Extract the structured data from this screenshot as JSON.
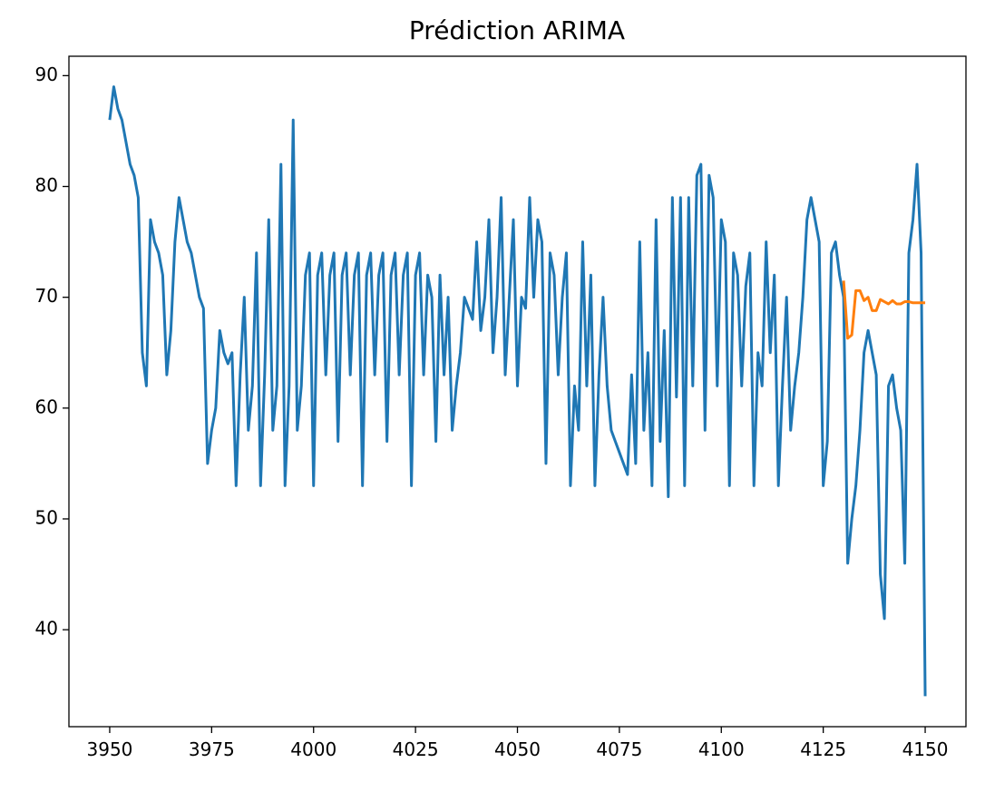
{
  "chart_data": {
    "type": "line",
    "title": "Prédiction ARIMA",
    "xlim": [
      3940,
      4160
    ],
    "xticks": [
      3950,
      3975,
      4000,
      4025,
      4050,
      4075,
      4100,
      4125,
      4150
    ],
    "ylim": [
      31.25,
      91.75
    ],
    "yticks": [
      40,
      50,
      60,
      70,
      80,
      90
    ],
    "series": [
      {
        "color": "#1f77b4",
        "x": [
          3950,
          3951,
          3952,
          3953,
          3954,
          3955,
          3956,
          3957,
          3958,
          3959,
          3960,
          3961,
          3962,
          3963,
          3964,
          3965,
          3966,
          3967,
          3968,
          3969,
          3970,
          3971,
          3972,
          3973,
          3974,
          3975,
          3976,
          3977,
          3978,
          3979,
          3980,
          3981,
          3982,
          3983,
          3984,
          3985,
          3986,
          3987,
          3988,
          3989,
          3990,
          3991,
          3992,
          3993,
          3994,
          3995,
          3996,
          3997,
          3998,
          3999,
          4000,
          4001,
          4002,
          4003,
          4004,
          4005,
          4006,
          4007,
          4008,
          4009,
          4010,
          4011,
          4012,
          4013,
          4014,
          4015,
          4016,
          4017,
          4018,
          4019,
          4020,
          4021,
          4022,
          4023,
          4024,
          4025,
          4026,
          4027,
          4028,
          4029,
          4030,
          4031,
          4032,
          4033,
          4034,
          4035,
          4036,
          4037,
          4038,
          4039,
          4040,
          4041,
          4042,
          4043,
          4044,
          4045,
          4046,
          4047,
          4048,
          4049,
          4050,
          4051,
          4052,
          4053,
          4054,
          4055,
          4056,
          4057,
          4058,
          4059,
          4060,
          4061,
          4062,
          4063,
          4064,
          4065,
          4066,
          4067,
          4068,
          4069,
          4070,
          4071,
          4072,
          4073,
          4074,
          4075,
          4076,
          4077,
          4078,
          4079,
          4080,
          4081,
          4082,
          4083,
          4084,
          4085,
          4086,
          4087,
          4088,
          4089,
          4090,
          4091,
          4092,
          4093,
          4094,
          4095,
          4096,
          4097,
          4098,
          4099,
          4100,
          4101,
          4102,
          4103,
          4104,
          4105,
          4106,
          4107,
          4108,
          4109,
          4110,
          4111,
          4112,
          4113,
          4114,
          4115,
          4116,
          4117,
          4118,
          4119,
          4120,
          4121,
          4122,
          4123,
          4124,
          4125,
          4126,
          4127,
          4128,
          4129,
          4130,
          4131,
          4132,
          4133,
          4134,
          4135,
          4136,
          4137,
          4138,
          4139,
          4140,
          4141,
          4142,
          4143,
          4144,
          4145,
          4146,
          4147,
          4148,
          4149,
          4150
        ],
        "values": [
          86,
          89,
          87,
          86,
          84,
          82,
          81,
          79,
          65,
          62,
          77,
          75,
          74,
          72,
          63,
          67,
          75,
          79,
          77,
          75,
          74,
          72,
          70,
          69,
          55,
          58,
          60,
          67,
          65,
          64,
          65,
          53,
          63,
          70,
          58,
          62,
          74,
          53,
          63,
          77,
          58,
          62,
          82,
          53,
          62,
          86,
          58,
          62,
          72,
          74,
          53,
          72,
          74,
          63,
          72,
          74,
          57,
          72,
          74,
          63,
          72,
          74,
          53,
          72,
          74,
          63,
          72,
          74,
          57,
          72,
          74,
          63,
          72,
          74,
          53,
          72,
          74,
          63,
          72,
          70,
          57,
          72,
          63,
          70,
          58,
          62,
          65,
          70,
          69,
          68,
          75,
          67,
          70,
          77,
          65,
          70,
          79,
          63,
          70,
          77,
          62,
          70,
          69,
          79,
          70,
          77,
          75,
          55,
          74,
          72,
          63,
          70,
          74,
          53,
          62,
          58,
          75,
          62,
          72,
          53,
          63,
          70,
          62,
          58,
          57,
          56,
          55,
          54,
          63,
          55,
          75,
          58,
          65,
          53,
          77,
          57,
          67,
          52,
          79,
          61,
          79,
          53,
          79,
          62,
          81,
          82,
          58,
          81,
          79,
          62,
          77,
          75,
          53,
          74,
          72,
          62,
          71,
          74,
          53,
          65,
          62,
          75,
          65,
          72,
          53,
          62,
          70,
          58,
          62,
          65,
          70,
          77,
          79,
          77,
          75,
          53,
          57,
          74,
          75,
          72,
          70,
          46,
          50,
          53,
          58,
          65,
          67,
          65,
          63,
          45,
          41,
          62,
          63,
          60,
          58,
          46,
          74,
          77,
          82,
          74,
          34
        ]
      },
      {
        "color": "#ff7f0e",
        "x": [
          4130,
          4131,
          4132,
          4133,
          4134,
          4135,
          4136,
          4137,
          4138,
          4139,
          4140,
          4141,
          4142,
          4143,
          4144,
          4145,
          4146,
          4147,
          4148,
          4149,
          4150
        ],
        "values": [
          71.5,
          66.3,
          66.6,
          70.6,
          70.6,
          69.7,
          70,
          68.8,
          68.8,
          69.8,
          69.6,
          69.4,
          69.7,
          69.4,
          69.4,
          69.6,
          69.6,
          69.5,
          69.5,
          69.5,
          69.5
        ]
      }
    ]
  }
}
